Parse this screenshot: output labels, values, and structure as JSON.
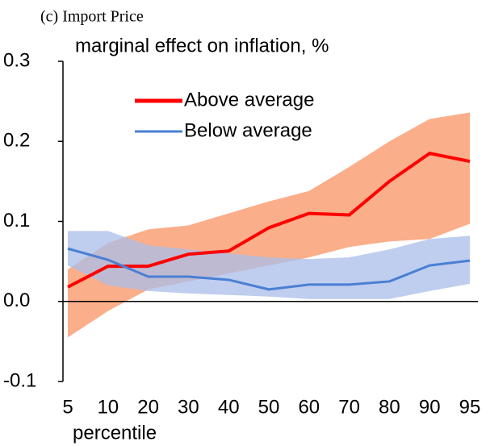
{
  "chart_data": {
    "type": "line",
    "title": "(c) Import Price",
    "y_label": "marginal effect on inflation, %",
    "x_label": "percentile",
    "categories": [
      "5",
      "10",
      "20",
      "30",
      "40",
      "50",
      "60",
      "70",
      "80",
      "90",
      "95"
    ],
    "ylim": [
      -0.1,
      0.3
    ],
    "yticks": [
      -0.1,
      {
        "value": 0,
        "label": "0.0"
      },
      0.1,
      0.2,
      0.3
    ],
    "legend": "upper left",
    "series": [
      {
        "name": "Above average",
        "color": "#ff0000",
        "band_color": "#fbae8a",
        "values": [
          0.018,
          0.044,
          0.044,
          0.059,
          0.063,
          0.092,
          0.11,
          0.108,
          0.15,
          0.185,
          0.175
        ],
        "upper": [
          0.04,
          0.073,
          0.09,
          0.095,
          0.11,
          0.125,
          0.138,
          0.168,
          0.2,
          0.228,
          0.236
        ],
        "lower": [
          -0.045,
          -0.012,
          0.015,
          0.025,
          0.035,
          0.045,
          0.055,
          0.068,
          0.075,
          0.078,
          0.097
        ]
      },
      {
        "name": "Below average",
        "color": "#4a7fd4",
        "band_color": "#a9bde8",
        "values": [
          0.066,
          0.052,
          0.031,
          0.031,
          0.027,
          0.015,
          0.021,
          0.021,
          0.025,
          0.045,
          0.051
        ],
        "upper": [
          0.088,
          0.088,
          0.07,
          0.065,
          0.06,
          0.055,
          0.053,
          0.055,
          0.065,
          0.078,
          0.082
        ],
        "lower": [
          0.045,
          0.02,
          0.013,
          0.01,
          0.008,
          0.006,
          0.003,
          0.003,
          0.003,
          0.013,
          0.022
        ]
      }
    ]
  }
}
